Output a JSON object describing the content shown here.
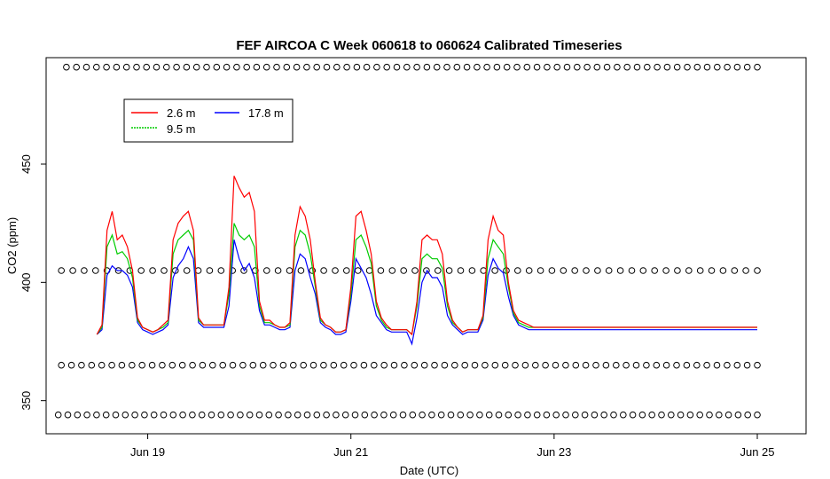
{
  "chart_data": {
    "type": "line",
    "title": "FEF AIRCOA C  Week 060618 to 060624  Calibrated Timeseries",
    "xlabel": "Date (UTC)",
    "ylabel": "CO2 (ppm)",
    "xlim": [
      -0.5,
      6.98
    ],
    "ylim": [
      336,
      495
    ],
    "x_ticks": [
      {
        "value": 0.5,
        "label": "Jun 19"
      },
      {
        "value": 2.5,
        "label": "Jun 21"
      },
      {
        "value": 4.5,
        "label": "Jun 23"
      },
      {
        "value": 6.5,
        "label": "Jun 25"
      }
    ],
    "y_ticks": [
      {
        "value": 350,
        "label": "350"
      },
      {
        "value": 400,
        "label": "400"
      },
      {
        "value": 450,
        "label": "450"
      }
    ],
    "legend": {
      "position": "top-left",
      "entries": [
        {
          "name": "2.6 m",
          "color": "#ff0000"
        },
        {
          "name": "9.5 m",
          "color": "#00cc00"
        },
        {
          "name": "17.8 m",
          "color": "#0000ff"
        }
      ]
    },
    "series": [
      {
        "name": "2.6 m",
        "color": "#ff0000",
        "x": [
          0,
          0.05,
          0.1,
          0.15,
          0.2,
          0.25,
          0.3,
          0.35,
          0.4,
          0.45,
          0.5,
          0.55,
          0.6,
          0.65,
          0.7,
          0.75,
          0.8,
          0.85,
          0.9,
          0.95,
          1.0,
          1.05,
          1.1,
          1.15,
          1.2,
          1.25,
          1.3,
          1.35,
          1.4,
          1.45,
          1.5,
          1.55,
          1.6,
          1.65,
          1.7,
          1.75,
          1.8,
          1.85,
          1.9,
          1.95,
          2.0,
          2.05,
          2.1,
          2.15,
          2.2,
          2.25,
          2.3,
          2.35,
          2.4,
          2.45,
          2.5,
          2.55,
          2.6,
          2.65,
          2.7,
          2.75,
          2.8,
          2.85,
          2.9,
          2.95,
          3.0,
          3.05,
          3.1,
          3.15,
          3.2,
          3.25,
          3.3,
          3.35,
          3.4,
          3.45,
          3.5,
          3.55,
          3.6,
          3.65,
          3.7,
          3.75,
          3.8,
          3.85,
          3.9,
          3.95,
          4.0,
          4.05,
          4.1,
          4.15,
          4.2,
          4.25,
          4.3,
          4.35,
          4.4,
          4.45,
          4.5,
          4.55,
          4.6,
          4.65,
          4.7,
          4.75,
          4.8,
          4.85,
          4.9,
          4.95,
          5.0,
          5.05,
          5.1,
          5.15,
          5.2,
          5.25,
          5.3,
          5.35,
          5.4,
          5.45,
          5.5,
          5.55,
          5.6,
          5.65,
          5.7,
          5.75,
          5.8,
          5.85,
          5.9,
          5.95,
          6.0,
          6.05,
          6.1,
          6.15,
          6.2,
          6.25,
          6.3,
          6.35,
          6.4,
          6.45,
          6.5
        ],
        "values": [
          378,
          382,
          422,
          430,
          418,
          420,
          415,
          405,
          385,
          381,
          380,
          379,
          380,
          382,
          384,
          418,
          425,
          428,
          430,
          422,
          385,
          382,
          382,
          382,
          382,
          382,
          398,
          445,
          440,
          436,
          438,
          430,
          392,
          384,
          384,
          382,
          381,
          381,
          383,
          420,
          432,
          428,
          418,
          400,
          385,
          382,
          381,
          379,
          379,
          380,
          398,
          428,
          430,
          422,
          412,
          392,
          385,
          382,
          380,
          380,
          380,
          380,
          378,
          392,
          418,
          420,
          418,
          418,
          412,
          392,
          384,
          381,
          379,
          380,
          380,
          380,
          386,
          418,
          428,
          422,
          420,
          400,
          388,
          384,
          383,
          382,
          381,
          381,
          381,
          381,
          381,
          381,
          381,
          381,
          381,
          381,
          381,
          381,
          381,
          381,
          381,
          381,
          381,
          381,
          381,
          381,
          381,
          381,
          381,
          381,
          381,
          381,
          381,
          381,
          381,
          381,
          381,
          381,
          381,
          381,
          381,
          381,
          381,
          381,
          381,
          381,
          381,
          381,
          381,
          381,
          381
        ]
      },
      {
        "name": "9.5 m",
        "color": "#00cc00",
        "x": [
          0,
          0.05,
          0.1,
          0.15,
          0.2,
          0.25,
          0.3,
          0.35,
          0.4,
          0.45,
          0.5,
          0.55,
          0.6,
          0.65,
          0.7,
          0.75,
          0.8,
          0.85,
          0.9,
          0.95,
          1.0,
          1.05,
          1.1,
          1.15,
          1.2,
          1.25,
          1.3,
          1.35,
          1.4,
          1.45,
          1.5,
          1.55,
          1.6,
          1.65,
          1.7,
          1.75,
          1.8,
          1.85,
          1.9,
          1.95,
          2.0,
          2.05,
          2.1,
          2.15,
          2.2,
          2.25,
          2.3,
          2.35,
          2.4,
          2.45,
          2.5,
          2.55,
          2.6,
          2.65,
          2.7,
          2.75,
          2.8,
          2.85,
          2.9,
          2.95,
          3.0,
          3.05,
          3.1,
          3.15,
          3.2,
          3.25,
          3.3,
          3.35,
          3.4,
          3.45,
          3.5,
          3.55,
          3.6,
          3.65,
          3.7,
          3.75,
          3.8,
          3.85,
          3.9,
          3.95,
          4.0,
          4.05,
          4.1,
          4.15,
          4.2,
          4.25,
          4.3,
          4.35,
          4.4,
          4.45,
          4.5,
          4.55,
          4.6,
          4.65,
          4.7,
          4.75,
          4.8,
          4.85,
          4.9,
          4.95,
          5.0,
          5.05,
          5.1,
          5.15,
          5.2,
          5.25,
          5.3,
          5.35,
          5.4,
          5.45,
          5.5,
          5.55,
          5.6,
          5.65,
          5.7,
          5.75,
          5.8,
          5.85,
          5.9,
          5.95,
          6.0,
          6.05,
          6.1,
          6.15,
          6.2,
          6.25,
          6.3,
          6.35,
          6.4,
          6.45,
          6.5
        ],
        "values": [
          378,
          381,
          415,
          420,
          412,
          413,
          410,
          402,
          384,
          381,
          380,
          379,
          380,
          381,
          383,
          412,
          418,
          420,
          422,
          418,
          384,
          382,
          382,
          382,
          382,
          382,
          395,
          425,
          420,
          418,
          420,
          415,
          390,
          383,
          383,
          382,
          381,
          381,
          382,
          415,
          422,
          420,
          412,
          398,
          384,
          382,
          381,
          379,
          379,
          380,
          395,
          418,
          420,
          415,
          408,
          390,
          384,
          381,
          380,
          380,
          380,
          380,
          378,
          390,
          410,
          412,
          410,
          410,
          406,
          390,
          383,
          381,
          379,
          380,
          380,
          380,
          385,
          410,
          418,
          415,
          412,
          398,
          387,
          383,
          382,
          381,
          381,
          381,
          381,
          381,
          381,
          381,
          381,
          381,
          381,
          381,
          381,
          381,
          381,
          381,
          381,
          381,
          381,
          381,
          381,
          381,
          381,
          381,
          381,
          381,
          381,
          381,
          381,
          381,
          381,
          381,
          381,
          381,
          381,
          381,
          381,
          381,
          381,
          381,
          381,
          381,
          381,
          381,
          381,
          381,
          381
        ]
      },
      {
        "name": "17.8 m",
        "color": "#0000ff",
        "x": [
          0,
          0.05,
          0.1,
          0.15,
          0.2,
          0.25,
          0.3,
          0.35,
          0.4,
          0.45,
          0.5,
          0.55,
          0.6,
          0.65,
          0.7,
          0.75,
          0.8,
          0.85,
          0.9,
          0.95,
          1.0,
          1.05,
          1.1,
          1.15,
          1.2,
          1.25,
          1.3,
          1.35,
          1.4,
          1.45,
          1.5,
          1.55,
          1.6,
          1.65,
          1.7,
          1.75,
          1.8,
          1.85,
          1.9,
          1.95,
          2.0,
          2.05,
          2.1,
          2.15,
          2.2,
          2.25,
          2.3,
          2.35,
          2.4,
          2.45,
          2.5,
          2.55,
          2.6,
          2.65,
          2.7,
          2.75,
          2.8,
          2.85,
          2.9,
          2.95,
          3.0,
          3.05,
          3.1,
          3.15,
          3.2,
          3.25,
          3.3,
          3.35,
          3.4,
          3.45,
          3.5,
          3.55,
          3.6,
          3.65,
          3.7,
          3.75,
          3.8,
          3.85,
          3.9,
          3.95,
          4.0,
          4.05,
          4.1,
          4.15,
          4.2,
          4.25,
          4.3,
          4.35,
          4.4,
          4.45,
          4.5,
          4.55,
          4.6,
          4.65,
          4.7,
          4.75,
          4.8,
          4.85,
          4.9,
          4.95,
          5.0,
          5.05,
          5.1,
          5.15,
          5.2,
          5.25,
          5.3,
          5.35,
          5.4,
          5.45,
          5.5,
          5.55,
          5.6,
          5.65,
          5.7,
          5.75,
          5.8,
          5.85,
          5.9,
          5.95,
          6.0,
          6.05,
          6.1,
          6.15,
          6.2,
          6.25,
          6.3,
          6.35,
          6.4,
          6.45,
          6.5
        ],
        "values": [
          378,
          380,
          403,
          407,
          405,
          405,
          403,
          398,
          383,
          380,
          379,
          378,
          379,
          380,
          382,
          402,
          407,
          410,
          415,
          410,
          383,
          381,
          381,
          381,
          381,
          381,
          390,
          418,
          410,
          405,
          408,
          402,
          388,
          382,
          382,
          381,
          380,
          380,
          381,
          405,
          412,
          410,
          402,
          395,
          383,
          381,
          380,
          378,
          378,
          379,
          392,
          410,
          406,
          402,
          395,
          386,
          383,
          380,
          379,
          379,
          379,
          379,
          374,
          385,
          400,
          405,
          402,
          402,
          398,
          386,
          382,
          380,
          378,
          379,
          379,
          379,
          384,
          403,
          410,
          406,
          404,
          394,
          386,
          382,
          381,
          380,
          380,
          380,
          380,
          380,
          380,
          380,
          380,
          380,
          380,
          380,
          380,
          380,
          380,
          380,
          380,
          380,
          380,
          380,
          380,
          380,
          380,
          380,
          380,
          380,
          380,
          380,
          380,
          380,
          380,
          380,
          380,
          380,
          380,
          380,
          380,
          380,
          380,
          380,
          380,
          380,
          380,
          380,
          380,
          380,
          380
        ]
      },
      {
        "name": "marker rows",
        "type": "scatter",
        "marker": "circle",
        "rows": [
          {
            "y": 491,
            "x_start": -0.3,
            "x_end": 6.5,
            "count": 70
          },
          {
            "y": 405,
            "x_start": -0.35,
            "x_end": 6.5,
            "count": 62
          },
          {
            "y": 365,
            "x_start": -0.35,
            "x_end": 6.5,
            "count": 70
          },
          {
            "y": 344,
            "x_start": -0.38,
            "x_end": 6.5,
            "count": 74
          }
        ]
      }
    ]
  }
}
